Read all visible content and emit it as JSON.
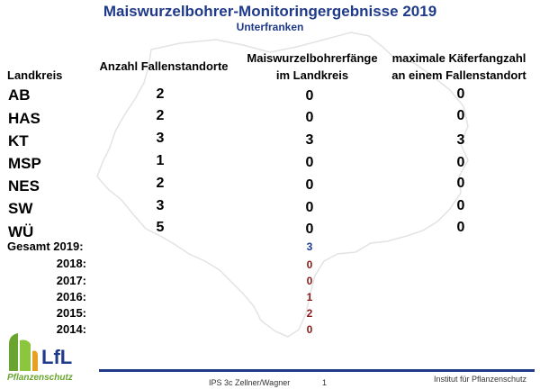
{
  "header": {
    "title": "Maiswurzelbohrer-Monitoringergebnisse 2019",
    "subtitle": "Unterfranken"
  },
  "columns": {
    "landkreis": "Landkreis",
    "anzahl": "Anzahl Fallenstandorte",
    "faenge_line1": "Maiswurzelbohrerfänge",
    "faenge_line2": "im Landkreis",
    "max_line1": "maximale Käferfangzahl",
    "max_line2": "an einem Fallenstandort"
  },
  "rows": [
    {
      "landkreis": "AB",
      "anzahl": "2",
      "faenge": "0",
      "max": "0"
    },
    {
      "landkreis": "HAS",
      "anzahl": "2",
      "faenge": "0",
      "max": "0"
    },
    {
      "landkreis": "KT",
      "anzahl": "3",
      "faenge": "3",
      "max": "3"
    },
    {
      "landkreis": "MSP",
      "anzahl": "1",
      "faenge": "0",
      "max": "0"
    },
    {
      "landkreis": "NES",
      "anzahl": "2",
      "faenge": "0",
      "max": "0"
    },
    {
      "landkreis": "SW",
      "anzahl": "3",
      "faenge": "0",
      "max": "0"
    },
    {
      "landkreis": "WÜ",
      "anzahl": "5",
      "faenge": "0",
      "max": "0"
    }
  ],
  "totals": [
    {
      "label": "Gesamt 2019:",
      "value": "3",
      "color": "#1f3a9a"
    },
    {
      "label": "2018:",
      "value": "0",
      "color": "#8b1a1a"
    },
    {
      "label": "2017:",
      "value": "0",
      "color": "#8b1a1a"
    },
    {
      "label": "2016:",
      "value": "1",
      "color": "#8b1a1a"
    },
    {
      "label": "2015:",
      "value": "2",
      "color": "#8b1a1a"
    },
    {
      "label": "2014:",
      "value": "0",
      "color": "#8b1a1a"
    }
  ],
  "logo": {
    "name": "LfL",
    "tagline": "Pflanzenschutz"
  },
  "footer": {
    "authors": "IPS 3c Zellner/Wagner",
    "page": "1",
    "institute": "Institut für Pflanzenschutz"
  },
  "colors": {
    "title": "#1f3a8a",
    "logo_green": "#6aa52f",
    "logo_orange": "#e6a023"
  }
}
